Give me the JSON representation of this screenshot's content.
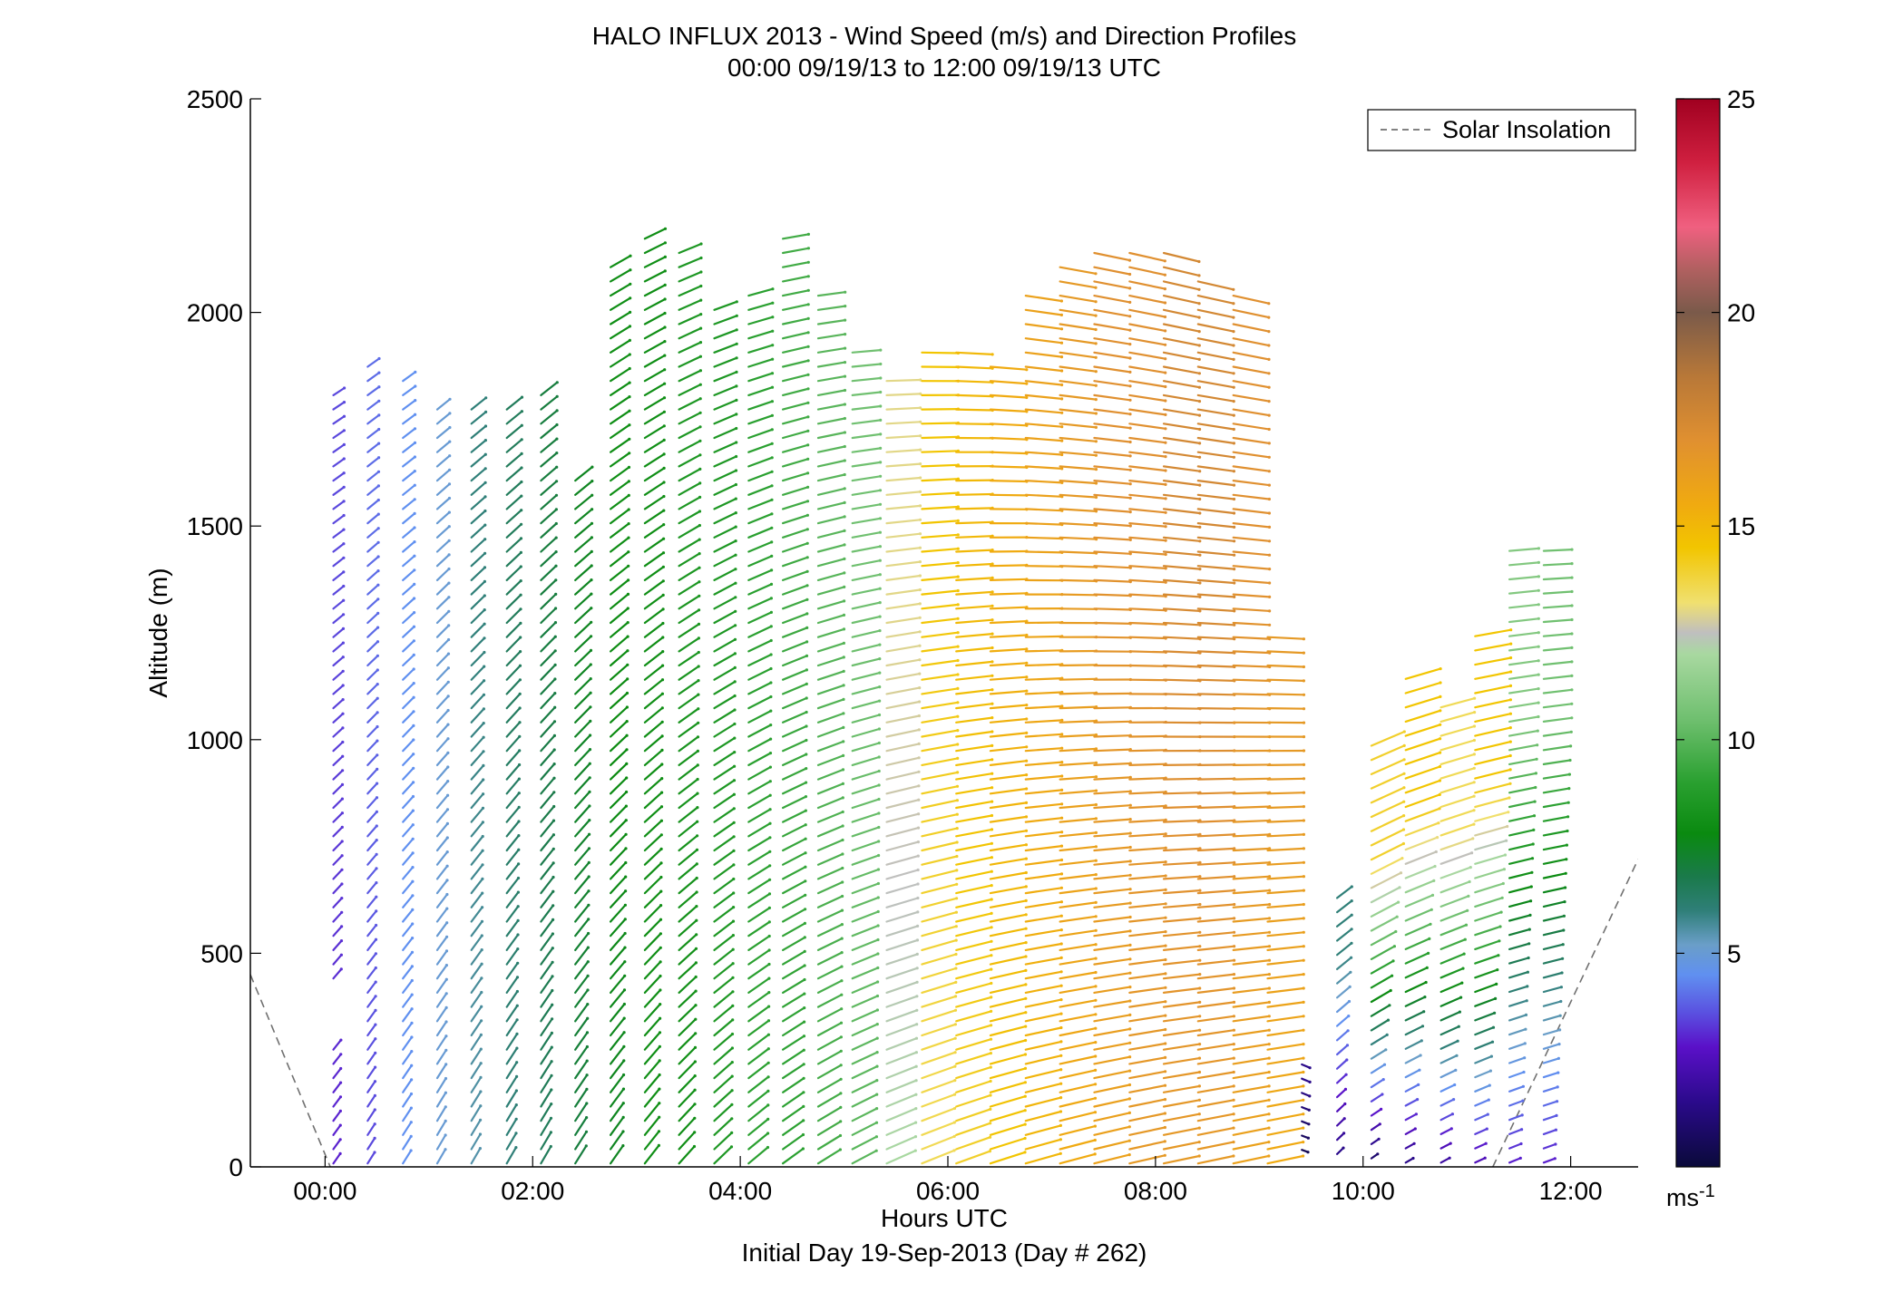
{
  "chart_data": {
    "type": "wind-barb-profile",
    "title": "HALO INFLUX 2013 - Wind Speed (m/s) and Direction Profiles",
    "subtitle": "00:00 09/19/13 to 12:00 09/19/13  UTC",
    "xlabel": "Hours UTC",
    "xlabel2": "Initial Day 19-Sep-2013 (Day # 262)",
    "ylabel": "Altitude (m)",
    "xlim_hours": [
      -0.72,
      12.65
    ],
    "ylim": [
      0,
      2500
    ],
    "x_ticks": [
      {
        "hour": 0,
        "label": "00:00"
      },
      {
        "hour": 2,
        "label": "02:00"
      },
      {
        "hour": 4,
        "label": "04:00"
      },
      {
        "hour": 6,
        "label": "06:00"
      },
      {
        "hour": 8,
        "label": "08:00"
      },
      {
        "hour": 10,
        "label": "10:00"
      },
      {
        "hour": 12,
        "label": "12:00"
      }
    ],
    "y_ticks": [
      {
        "value": 0,
        "label": "0"
      },
      {
        "value": 500,
        "label": "500"
      },
      {
        "value": 1000,
        "label": "1000"
      },
      {
        "value": 1500,
        "label": "1500"
      },
      {
        "value": 2000,
        "label": "2000"
      },
      {
        "value": 2500,
        "label": "2500"
      }
    ],
    "legend": {
      "label": "Solar Insolation",
      "placement": "top-right",
      "line_color": "#707070",
      "line_style": "dashed"
    },
    "colorbar": {
      "range": [
        0,
        25
      ],
      "unit_label": "ms",
      "unit_exponent": "-1",
      "ticks": [
        {
          "value": 5,
          "label": "5"
        },
        {
          "value": 10,
          "label": "10"
        },
        {
          "value": 15,
          "label": "15"
        },
        {
          "value": 20,
          "label": "20"
        },
        {
          "value": 25,
          "label": "25"
        }
      ],
      "stops": [
        {
          "value": 0,
          "color": "#0a0a3a"
        },
        {
          "value": 1.5,
          "color": "#2a0a8a"
        },
        {
          "value": 2.8,
          "color": "#5a10c8"
        },
        {
          "value": 3.6,
          "color": "#5a50e0"
        },
        {
          "value": 4.5,
          "color": "#6090f0"
        },
        {
          "value": 5.2,
          "color": "#6a9ec8"
        },
        {
          "value": 6.0,
          "color": "#2f7f78"
        },
        {
          "value": 6.8,
          "color": "#1a7a4a"
        },
        {
          "value": 7.8,
          "color": "#0a8a10"
        },
        {
          "value": 9.0,
          "color": "#2aa030"
        },
        {
          "value": 10.5,
          "color": "#70c070"
        },
        {
          "value": 12.0,
          "color": "#a8d8a0"
        },
        {
          "value": 12.5,
          "color": "#bfbfbf"
        },
        {
          "value": 13.2,
          "color": "#f0e070"
        },
        {
          "value": 14.5,
          "color": "#f2c500"
        },
        {
          "value": 15.5,
          "color": "#f0aa10"
        },
        {
          "value": 17.0,
          "color": "#e09030"
        },
        {
          "value": 18.5,
          "color": "#b87838"
        },
        {
          "value": 20.0,
          "color": "#7a5a4a"
        },
        {
          "value": 21.0,
          "color": "#b06060"
        },
        {
          "value": 22.0,
          "color": "#f06080"
        },
        {
          "value": 23.5,
          "color": "#d02040"
        },
        {
          "value": 25.0,
          "color": "#a00020"
        }
      ]
    },
    "solar_insolation": {
      "left_branch": [
        [
          -0.72,
          450
        ],
        [
          0.05,
          0
        ]
      ],
      "right_branch": [
        [
          11.25,
          0
        ],
        [
          12.65,
          720
        ]
      ]
    },
    "wind_profiles": [
      {
        "hour": 0.08,
        "alt_min": 0,
        "alt_max": 1830,
        "speed_low": 3.0,
        "speed_high": 3.5,
        "dir": 215,
        "gap": [
          280,
          430
        ]
      },
      {
        "hour": 0.41,
        "alt_min": 0,
        "alt_max": 1880,
        "speed_low": 3.5,
        "speed_high": 4.0,
        "dir": 212
      },
      {
        "hour": 0.75,
        "alt_min": 0,
        "alt_max": 1870,
        "speed_low": 4.5,
        "speed_high": 4.5,
        "dir": 212
      },
      {
        "hour": 1.08,
        "alt_min": 0,
        "alt_max": 1780,
        "speed_low": 5.0,
        "speed_high": 5.0,
        "dir": 210
      },
      {
        "hour": 1.41,
        "alt_min": 0,
        "alt_max": 1790,
        "speed_low": 5.5,
        "speed_high": 6.0,
        "dir": 210
      },
      {
        "hour": 1.75,
        "alt_min": 0,
        "alt_max": 1780,
        "speed_low": 6.0,
        "speed_high": 6.5,
        "dir": 210
      },
      {
        "hour": 2.08,
        "alt_min": 0,
        "alt_max": 1830,
        "speed_low": 6.5,
        "speed_high": 7.0,
        "dir": 210
      },
      {
        "hour": 2.41,
        "alt_min": 0,
        "alt_max": 1620,
        "speed_low": 7.0,
        "speed_high": 7.5,
        "dir": 212
      },
      {
        "hour": 2.75,
        "alt_min": 0,
        "alt_max": 2130,
        "speed_low": 7.5,
        "speed_high": 8.0,
        "dir": 215
      },
      {
        "hour": 3.08,
        "alt_min": 0,
        "alt_max": 2180,
        "speed_low": 8.0,
        "speed_high": 8.0,
        "dir": 218
      },
      {
        "hour": 3.41,
        "alt_min": 0,
        "alt_max": 2170,
        "speed_low": 8.0,
        "speed_high": 8.5,
        "dir": 222
      },
      {
        "hour": 3.75,
        "alt_min": 0,
        "alt_max": 2010,
        "speed_low": 8.5,
        "speed_high": 8.5,
        "dir": 226
      },
      {
        "hour": 4.08,
        "alt_min": 0,
        "alt_max": 2050,
        "speed_low": 9.0,
        "speed_high": 9.0,
        "dir": 230
      },
      {
        "hour": 4.41,
        "alt_min": 0,
        "alt_max": 2180,
        "speed_low": 9.0,
        "speed_high": 9.5,
        "dir": 234
      },
      {
        "hour": 4.75,
        "alt_min": 0,
        "alt_max": 2040,
        "speed_low": 9.5,
        "speed_high": 10.0,
        "dir": 238
      },
      {
        "hour": 5.08,
        "alt_min": 0,
        "alt_max": 1920,
        "speed_low": 10.0,
        "speed_high": 10.5,
        "dir": 242
      },
      {
        "hour": 5.41,
        "alt_min": 0,
        "alt_max": 1840,
        "speed_low": 12.0,
        "speed_high": 13.0,
        "dir": 246
      },
      {
        "hour": 5.75,
        "alt_min": 0,
        "alt_max": 1920,
        "speed_low": 13.5,
        "speed_high": 14.5,
        "dir": 248
      },
      {
        "hour": 6.08,
        "alt_min": 0,
        "alt_max": 1920,
        "speed_low": 14.0,
        "speed_high": 15.0,
        "dir": 250
      },
      {
        "hour": 6.41,
        "alt_min": 0,
        "alt_max": 1880,
        "speed_low": 14.5,
        "speed_high": 15.5,
        "dir": 252
      },
      {
        "hour": 6.75,
        "alt_min": 0,
        "alt_max": 2050,
        "speed_low": 15.0,
        "speed_high": 16.0,
        "dir": 254
      },
      {
        "hour": 7.08,
        "alt_min": 0,
        "alt_max": 2130,
        "speed_low": 15.5,
        "speed_high": 16.5,
        "dir": 255
      },
      {
        "hour": 7.41,
        "alt_min": 0,
        "alt_max": 2170,
        "speed_low": 16.0,
        "speed_high": 17.0,
        "dir": 256
      },
      {
        "hour": 7.75,
        "alt_min": 0,
        "alt_max": 2170,
        "speed_low": 16.5,
        "speed_high": 17.0,
        "dir": 257
      },
      {
        "hour": 8.08,
        "alt_min": 0,
        "alt_max": 2150,
        "speed_low": 16.5,
        "speed_high": 17.5,
        "dir": 258
      },
      {
        "hour": 8.41,
        "alt_min": 0,
        "alt_max": 2080,
        "speed_low": 16.5,
        "speed_high": 17.5,
        "dir": 258
      },
      {
        "hour": 8.75,
        "alt_min": 0,
        "alt_max": 2050,
        "speed_low": 16.0,
        "speed_high": 17.0,
        "dir": 258
      },
      {
        "hour": 9.08,
        "alt_min": 0,
        "alt_max": 1250,
        "speed_low": 15.5,
        "speed_high": 16.5,
        "dir": 258
      },
      {
        "hour": 9.41,
        "alt_min": 40,
        "alt_max": 260,
        "speed_low": 0.5,
        "speed_high": 1.5,
        "dir": 290
      },
      {
        "hour": 9.75,
        "alt_min": 30,
        "alt_max": 660,
        "speed_low": 1.5,
        "speed_high": 6.0,
        "dir": 225
      },
      {
        "hour": 10.08,
        "alt_min": 20,
        "alt_max": 1000,
        "speed_low": 1.0,
        "speed_high": 14.0,
        "dir": 235
      },
      {
        "hour": 10.41,
        "alt_min": 10,
        "alt_max": 1160,
        "speed_low": 1.5,
        "speed_high": 14.5,
        "dir": 240
      },
      {
        "hour": 10.75,
        "alt_min": 10,
        "alt_max": 1080,
        "speed_low": 2.0,
        "speed_high": 13.5,
        "dir": 242
      },
      {
        "hour": 11.08,
        "alt_min": 10,
        "alt_max": 1260,
        "speed_low": 2.5,
        "speed_high": 14.5,
        "dir": 245
      },
      {
        "hour": 11.41,
        "alt_min": 10,
        "alt_max": 1460,
        "speed_low": 3.0,
        "speed_high": 11.0,
        "dir": 248
      },
      {
        "hour": 11.74,
        "alt_min": 10,
        "alt_max": 1450,
        "speed_low": 3.0,
        "speed_high": 10.5,
        "dir": 250
      }
    ]
  }
}
